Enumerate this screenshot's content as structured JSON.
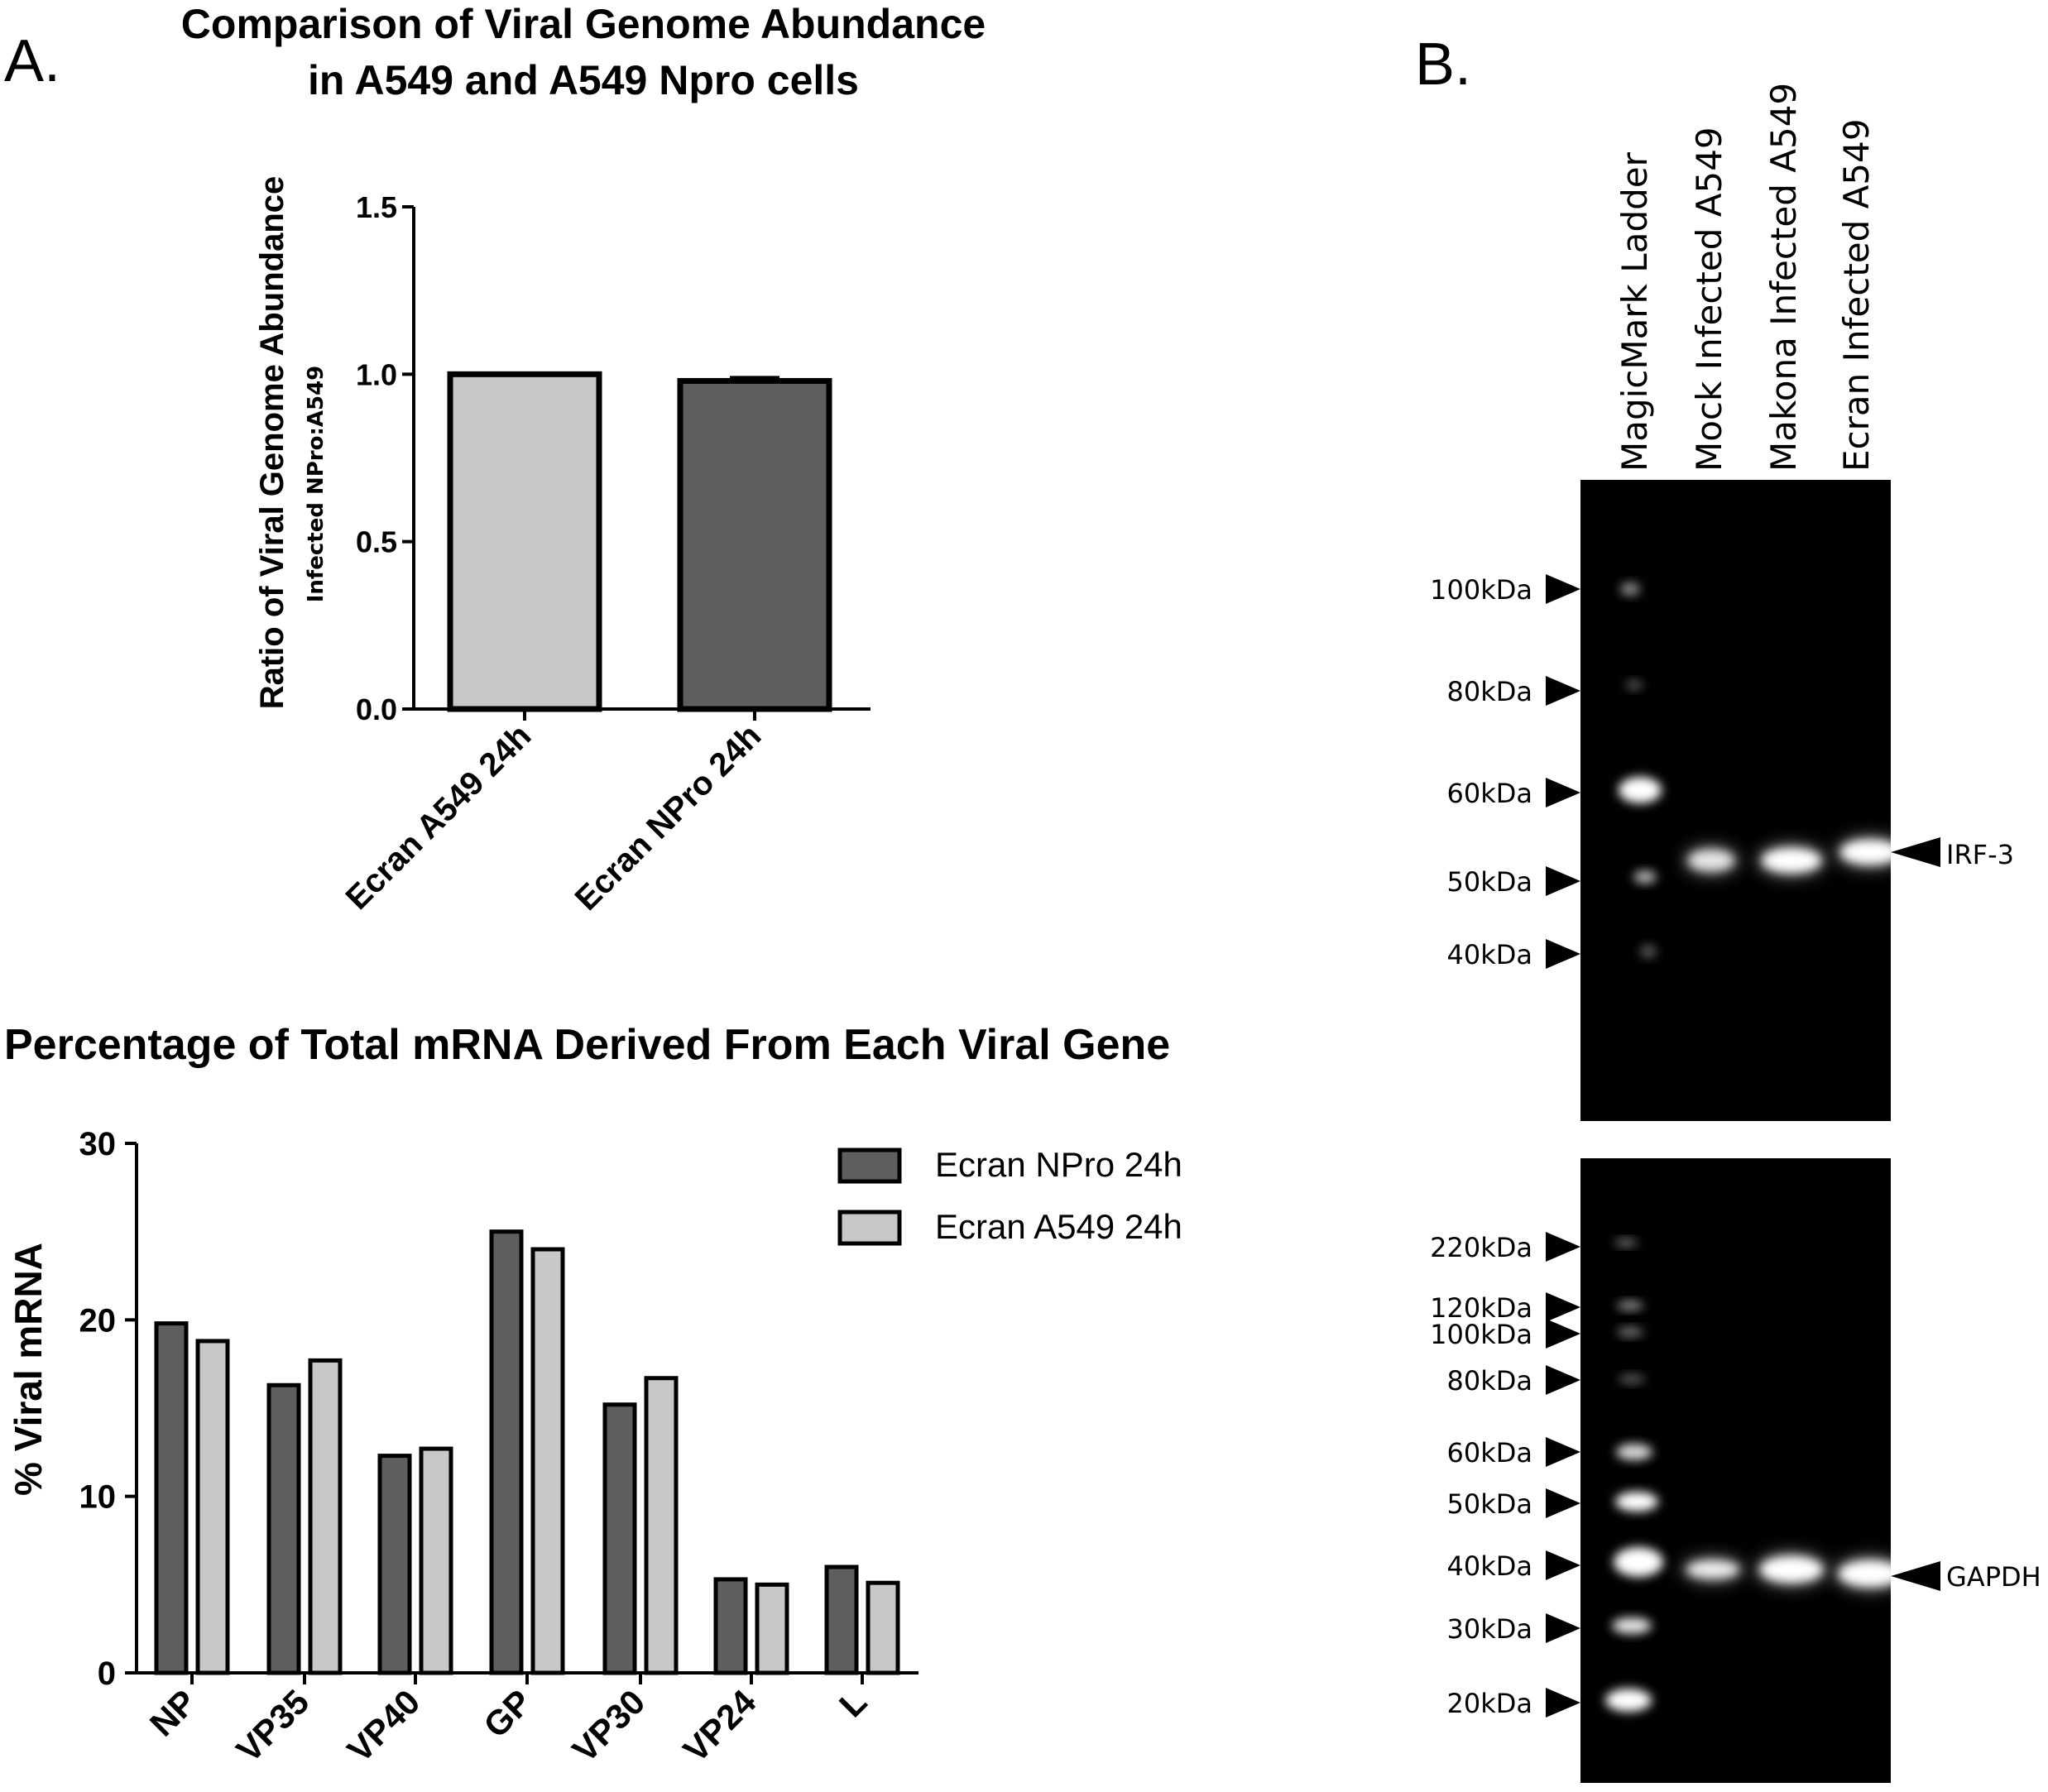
{
  "panel_a": {
    "letter": "A.",
    "chart_data": [
      {
        "type": "bar",
        "title_lines": [
          "Comparison of Viral  Genome Abundance",
          "in  A549 and A549 Npro cells"
        ],
        "ylabel": "Ratio of Viral Genome Abundance",
        "ylabel_sub": "Infected NPro:A549",
        "categories": [
          "Ecran A549 24h",
          "Ecran NPro 24h"
        ],
        "values": [
          1.0,
          0.98
        ],
        "errors": [
          0.0,
          0.01
        ],
        "ylim": [
          0,
          1.5
        ],
        "yticks": [
          "0.0",
          "0.5",
          "1.0",
          "1.5"
        ],
        "bar_colors": [
          "#c8c8c8",
          "#5e5e5e"
        ],
        "grid": false
      },
      {
        "type": "bar",
        "title": "Percentage of Total mRNA Derived From Each Viral Gene",
        "ylabel": "% Viral mRNA",
        "categories": [
          "NP",
          "VP35",
          "VP40",
          "GP",
          "VP30",
          "VP24",
          "L"
        ],
        "series": [
          {
            "name": "Ecran NPro 24h",
            "color": "#5e5e5e",
            "values": [
              19.8,
              16.3,
              12.3,
              25.0,
              15.2,
              5.3,
              6.0
            ]
          },
          {
            "name": "Ecran A549 24h",
            "color": "#c8c8c8",
            "values": [
              18.8,
              17.7,
              12.7,
              24.0,
              16.7,
              5.0,
              5.1
            ]
          }
        ],
        "ylim": [
          0,
          30
        ],
        "yticks": [
          "0",
          "10",
          "20",
          "30"
        ],
        "legend_position": "top-right",
        "grid": false
      }
    ]
  },
  "panel_b": {
    "letter": "B.",
    "lane_labels": [
      "MagicMark Ladder",
      "Mock Infected A549",
      "Makona Infected A549",
      "Ecran Infected A549"
    ],
    "blot_top": {
      "markers": [
        {
          "label": "100kDa",
          "kda": 100
        },
        {
          "label": "80kDa",
          "kda": 80
        },
        {
          "label": "60kDa",
          "kda": 60
        },
        {
          "label": "50kDa",
          "kda": 50
        },
        {
          "label": "40kDa",
          "kda": 40
        }
      ],
      "protein_label": "IRF-3"
    },
    "blot_bottom": {
      "markers": [
        {
          "label": "220kDa",
          "kda": 220
        },
        {
          "label": "120kDa",
          "kda": 120
        },
        {
          "label": "100kDa",
          "kda": 100
        },
        {
          "label": "80kDa",
          "kda": 80
        },
        {
          "label": "60kDa",
          "kda": 60
        },
        {
          "label": "50kDa",
          "kda": 50
        },
        {
          "label": "40kDa",
          "kda": 40
        },
        {
          "label": "30kDa",
          "kda": 30
        },
        {
          "label": "20kDa",
          "kda": 20
        }
      ],
      "protein_label": "GAPDH"
    }
  }
}
